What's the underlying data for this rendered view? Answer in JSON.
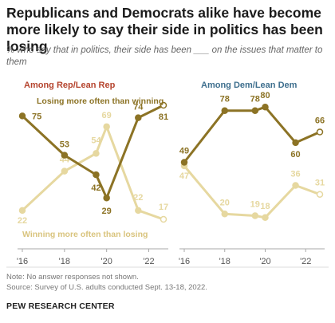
{
  "title": "Republicans and Democrats alike have become more likely to say their side in politics has been losing",
  "subtitle": "% who say that in politics, their side has been ___ on the issues that matter to them",
  "colors": {
    "losing": "#8c7325",
    "winning": "#e6d8a0",
    "rep_title": "#b5442e",
    "dem_title": "#3e6f8e",
    "axis": "#aaaaaa"
  },
  "chart_data": [
    {
      "type": "line",
      "title": "Among Rep/Lean Rep",
      "x": [
        2016,
        2018,
        2019.5,
        2020,
        2021.5,
        2022.7
      ],
      "x_ticks": [
        "'16",
        "'18",
        "'20",
        "'22"
      ],
      "series": [
        {
          "name": "Losing more often than winning",
          "values": [
            75,
            53,
            42,
            29,
            74,
            81
          ]
        },
        {
          "name": "Winning more often than losing",
          "values": [
            22,
            44,
            54,
            69,
            22,
            17
          ]
        }
      ]
    },
    {
      "type": "line",
      "title": "Among Dem/Lean Dem",
      "x": [
        2016,
        2018,
        2019.5,
        2020,
        2021.5,
        2022.7
      ],
      "x_ticks": [
        "'16",
        "'18",
        "'20",
        "'22"
      ],
      "series": [
        {
          "values": [
            49,
            78,
            78,
            80,
            60,
            66
          ]
        },
        {
          "values": [
            47,
            20,
            19,
            18,
            36,
            31
          ]
        }
      ]
    }
  ],
  "notes": [
    "Note: No answer responses not shown.",
    "Source: Survey of U.S. adults conducted Sept. 13-18, 2022."
  ],
  "brand": "PEW RESEARCH CENTER"
}
